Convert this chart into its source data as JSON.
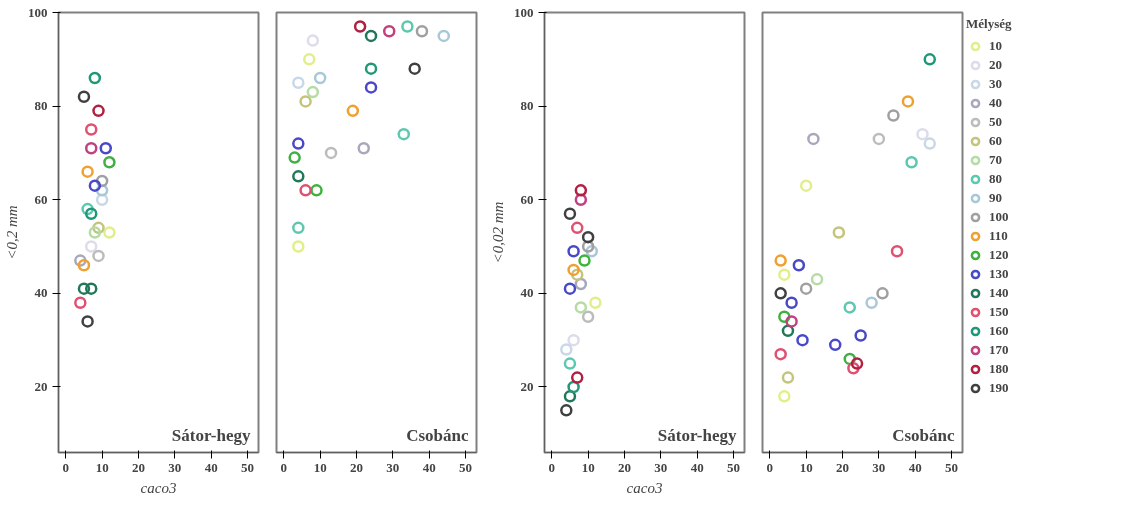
{
  "chart_data": [
    {
      "type": "scatter",
      "xlabel": "caco3",
      "ylabel": "<0,2 mm",
      "annotations": [
        "Sátor-hegy"
      ],
      "xlim": [
        -2,
        53
      ],
      "ylim": [
        6,
        100
      ],
      "xticks": [
        0,
        10,
        20,
        30,
        40,
        50
      ],
      "yticks": [
        20,
        40,
        60,
        80,
        100
      ],
      "marker": "circle",
      "grid": false,
      "series": [
        {
          "color": "#e2ee8a",
          "x": [
            12
          ],
          "values": [
            53
          ]
        },
        {
          "color": "#dcdcec",
          "x": [
            7
          ],
          "values": [
            50
          ]
        },
        {
          "color": "#c8d8e8",
          "x": [
            10
          ],
          "values": [
            60
          ]
        },
        {
          "color": "#a8a8bc",
          "x": [
            4
          ],
          "values": [
            47
          ]
        },
        {
          "color": "#bcbcbc",
          "x": [
            9
          ],
          "values": [
            48
          ]
        },
        {
          "color": "#c4c47c",
          "x": [
            9
          ],
          "values": [
            54
          ]
        },
        {
          "color": "#b4dca4",
          "x": [
            8
          ],
          "values": [
            53
          ]
        },
        {
          "color": "#5cc8b0",
          "x": [
            6
          ],
          "values": [
            58
          ]
        },
        {
          "color": "#a8c8d8",
          "x": [
            10
          ],
          "values": [
            62
          ]
        },
        {
          "color": "#a0a0a0",
          "x": [
            10
          ],
          "values": [
            64
          ]
        },
        {
          "color": "#f0a030",
          "x": [
            6,
            5
          ],
          "values": [
            66,
            46
          ]
        },
        {
          "color": "#40b040",
          "x": [
            12
          ],
          "values": [
            68
          ]
        },
        {
          "color": "#4848c8",
          "x": [
            11,
            8
          ],
          "values": [
            71,
            63
          ]
        },
        {
          "color": "#207858",
          "x": [
            5,
            7
          ],
          "values": [
            41,
            41
          ]
        },
        {
          "color": "#e05070",
          "x": [
            7,
            4
          ],
          "values": [
            75,
            38
          ]
        },
        {
          "color": "#209878",
          "x": [
            8,
            7
          ],
          "values": [
            86,
            57
          ]
        },
        {
          "color": "#c04080",
          "x": [
            7
          ],
          "values": [
            71
          ]
        },
        {
          "color": "#b02040",
          "x": [
            9
          ],
          "values": [
            79
          ]
        },
        {
          "color": "#404040",
          "x": [
            5,
            6
          ],
          "values": [
            82,
            34
          ]
        }
      ]
    },
    {
      "type": "scatter",
      "annotations": [
        "Csobánc"
      ],
      "xlim": [
        -2,
        53
      ],
      "ylim": [
        6,
        100
      ],
      "xticks": [
        0,
        10,
        20,
        30,
        40,
        50
      ],
      "tick_labels": "x",
      "marker": "circle",
      "grid": false,
      "series": [
        {
          "color": "#e2ee8a",
          "x": [
            4,
            7
          ],
          "values": [
            50,
            90
          ]
        },
        {
          "color": "#dcdcec",
          "x": [
            8
          ],
          "values": [
            94
          ]
        },
        {
          "color": "#c8d8e8",
          "x": [
            4
          ],
          "values": [
            85
          ]
        },
        {
          "color": "#a8a8bc",
          "x": [
            22
          ],
          "values": [
            71
          ]
        },
        {
          "color": "#bcbcbc",
          "x": [
            13
          ],
          "values": [
            70
          ]
        },
        {
          "color": "#c4c47c",
          "x": [
            6
          ],
          "values": [
            81
          ]
        },
        {
          "color": "#b4dca4",
          "x": [
            8
          ],
          "values": [
            83
          ]
        },
        {
          "color": "#5cc8b0",
          "x": [
            4,
            33,
            34
          ],
          "values": [
            54,
            74,
            97
          ]
        },
        {
          "color": "#a8c8d8",
          "x": [
            10,
            44
          ],
          "values": [
            86,
            95
          ]
        },
        {
          "color": "#a0a0a0",
          "x": [
            38
          ],
          "values": [
            96
          ]
        },
        {
          "color": "#f0a030",
          "x": [
            19
          ],
          "values": [
            79
          ]
        },
        {
          "color": "#40b040",
          "x": [
            3,
            9
          ],
          "values": [
            69,
            62
          ]
        },
        {
          "color": "#4848c8",
          "x": [
            4,
            24
          ],
          "values": [
            72,
            84
          ]
        },
        {
          "color": "#207858",
          "x": [
            4,
            24
          ],
          "values": [
            65,
            95
          ]
        },
        {
          "color": "#e05070",
          "x": [
            6
          ],
          "values": [
            62
          ]
        },
        {
          "color": "#209878",
          "x": [
            24
          ],
          "values": [
            88
          ]
        },
        {
          "color": "#c04080",
          "x": [
            29
          ],
          "values": [
            96
          ]
        },
        {
          "color": "#b02040",
          "x": [
            21
          ],
          "values": [
            97
          ]
        },
        {
          "color": "#404040",
          "x": [
            36
          ],
          "values": [
            88
          ]
        }
      ]
    },
    {
      "type": "scatter",
      "xlabel": "caco3",
      "ylabel": "<0,02 mm",
      "annotations": [
        "Sátor-hegy"
      ],
      "xlim": [
        -2,
        53
      ],
      "ylim": [
        6,
        100
      ],
      "xticks": [
        0,
        10,
        20,
        30,
        40,
        50
      ],
      "yticks": [
        20,
        40,
        60,
        80,
        100
      ],
      "marker": "circle",
      "grid": false,
      "series": [
        {
          "color": "#e2ee8a",
          "x": [
            12
          ],
          "values": [
            38
          ]
        },
        {
          "color": "#dcdcec",
          "x": [
            6
          ],
          "values": [
            30
          ]
        },
        {
          "color": "#c8d8e8",
          "x": [
            4
          ],
          "values": [
            28
          ]
        },
        {
          "color": "#a8a8bc",
          "x": [
            8
          ],
          "values": [
            42
          ]
        },
        {
          "color": "#bcbcbc",
          "x": [
            10
          ],
          "values": [
            35
          ]
        },
        {
          "color": "#c4c47c",
          "x": [
            7
          ],
          "values": [
            44
          ]
        },
        {
          "color": "#b4dca4",
          "x": [
            8
          ],
          "values": [
            37
          ]
        },
        {
          "color": "#5cc8b0",
          "x": [
            5
          ],
          "values": [
            25
          ]
        },
        {
          "color": "#a8c8d8",
          "x": [
            11
          ],
          "values": [
            49
          ]
        },
        {
          "color": "#a0a0a0",
          "x": [
            10
          ],
          "values": [
            50
          ]
        },
        {
          "color": "#f0a030",
          "x": [
            6
          ],
          "values": [
            45
          ]
        },
        {
          "color": "#40b040",
          "x": [
            9
          ],
          "values": [
            47
          ]
        },
        {
          "color": "#4848c8",
          "x": [
            5,
            6
          ],
          "values": [
            41,
            49
          ]
        },
        {
          "color": "#207858",
          "x": [
            5
          ],
          "values": [
            18
          ]
        },
        {
          "color": "#e05070",
          "x": [
            7
          ],
          "values": [
            54
          ]
        },
        {
          "color": "#209878",
          "x": [
            6
          ],
          "values": [
            20
          ]
        },
        {
          "color": "#c04080",
          "x": [
            8
          ],
          "values": [
            60
          ]
        },
        {
          "color": "#b02040",
          "x": [
            8,
            7
          ],
          "values": [
            62,
            22
          ]
        },
        {
          "color": "#404040",
          "x": [
            5,
            4,
            10
          ],
          "values": [
            57,
            15,
            52
          ]
        }
      ]
    },
    {
      "type": "scatter",
      "annotations": [
        "Csobánc"
      ],
      "xlim": [
        -2,
        53
      ],
      "ylim": [
        6,
        100
      ],
      "xticks": [
        0,
        10,
        20,
        30,
        40,
        50
      ],
      "tick_labels": "x",
      "marker": "circle",
      "grid": false,
      "legend": "right",
      "legend_title": "Mélység",
      "series": [
        {
          "name": "10",
          "color": "#e2ee8a",
          "x": [
            4,
            10,
            4
          ],
          "values": [
            44,
            63,
            18
          ]
        },
        {
          "name": "20",
          "color": "#dcdcec",
          "x": [
            42
          ],
          "values": [
            74
          ]
        },
        {
          "name": "30",
          "color": "#c8d8e8",
          "x": [
            44
          ],
          "values": [
            72
          ]
        },
        {
          "name": "40",
          "color": "#a8a8bc",
          "x": [
            12
          ],
          "values": [
            73
          ]
        },
        {
          "name": "50",
          "color": "#bcbcbc",
          "x": [
            30
          ],
          "values": [
            73
          ]
        },
        {
          "name": "60",
          "color": "#c4c47c",
          "x": [
            19,
            5
          ],
          "values": [
            53,
            22
          ]
        },
        {
          "name": "70",
          "color": "#b4dca4",
          "x": [
            13
          ],
          "values": [
            43
          ]
        },
        {
          "name": "80",
          "color": "#5cc8b0",
          "x": [
            39,
            22
          ],
          "values": [
            68,
            37
          ]
        },
        {
          "name": "90",
          "color": "#a8c8d8",
          "x": [
            28
          ],
          "values": [
            38
          ]
        },
        {
          "name": "100",
          "color": "#a0a0a0",
          "x": [
            34,
            31,
            10
          ],
          "values": [
            78,
            40,
            41
          ]
        },
        {
          "name": "110",
          "color": "#f0a030",
          "x": [
            38,
            3
          ],
          "values": [
            81,
            47
          ]
        },
        {
          "name": "120",
          "color": "#40b040",
          "x": [
            22,
            4
          ],
          "values": [
            26,
            35
          ]
        },
        {
          "name": "130",
          "color": "#4848c8",
          "x": [
            25,
            18,
            8,
            6,
            9
          ],
          "values": [
            31,
            29,
            46,
            38,
            30
          ]
        },
        {
          "name": "140",
          "color": "#207858",
          "x": [
            5
          ],
          "values": [
            32
          ]
        },
        {
          "name": "150",
          "color": "#e05070",
          "x": [
            35,
            23,
            3
          ],
          "values": [
            49,
            24,
            27
          ]
        },
        {
          "name": "160",
          "color": "#209878",
          "x": [
            44
          ],
          "values": [
            90
          ]
        },
        {
          "name": "170",
          "color": "#c04080",
          "x": [
            6
          ],
          "values": [
            34
          ]
        },
        {
          "name": "180",
          "color": "#b02040",
          "x": [
            24
          ],
          "values": [
            25
          ]
        },
        {
          "name": "190",
          "color": "#404040",
          "x": [
            3
          ],
          "values": [
            40
          ]
        }
      ]
    }
  ]
}
